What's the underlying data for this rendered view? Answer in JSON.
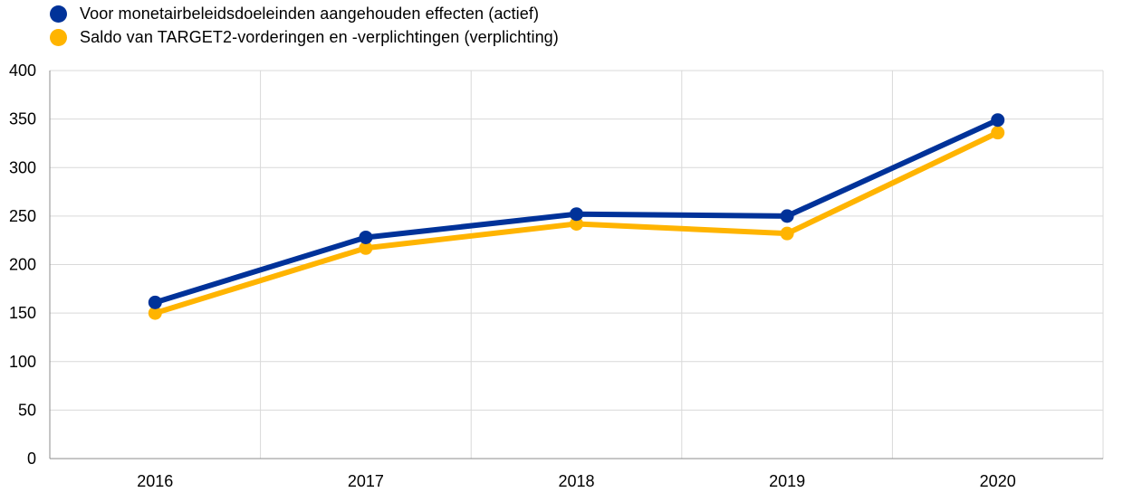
{
  "chart_data": {
    "type": "line",
    "categories": [
      "2016",
      "2017",
      "2018",
      "2019",
      "2020"
    ],
    "series": [
      {
        "name": "Voor monetairbeleidsdoeleinden aangehouden effecten (actief)",
        "color": "#003299",
        "values": [
          161,
          228,
          252,
          250,
          349
        ]
      },
      {
        "name": "Saldo van TARGET2-vorderingen en -verplichtingen (verplichting)",
        "color": "#FFB400",
        "values": [
          150,
          217,
          242,
          232,
          336
        ]
      }
    ],
    "ylim": [
      0,
      400
    ],
    "yticks": [
      0,
      50,
      100,
      150,
      200,
      250,
      300,
      350,
      400
    ],
    "grid": true,
    "legend": "top-left",
    "title": "",
    "xlabel": "",
    "ylabel": ""
  }
}
